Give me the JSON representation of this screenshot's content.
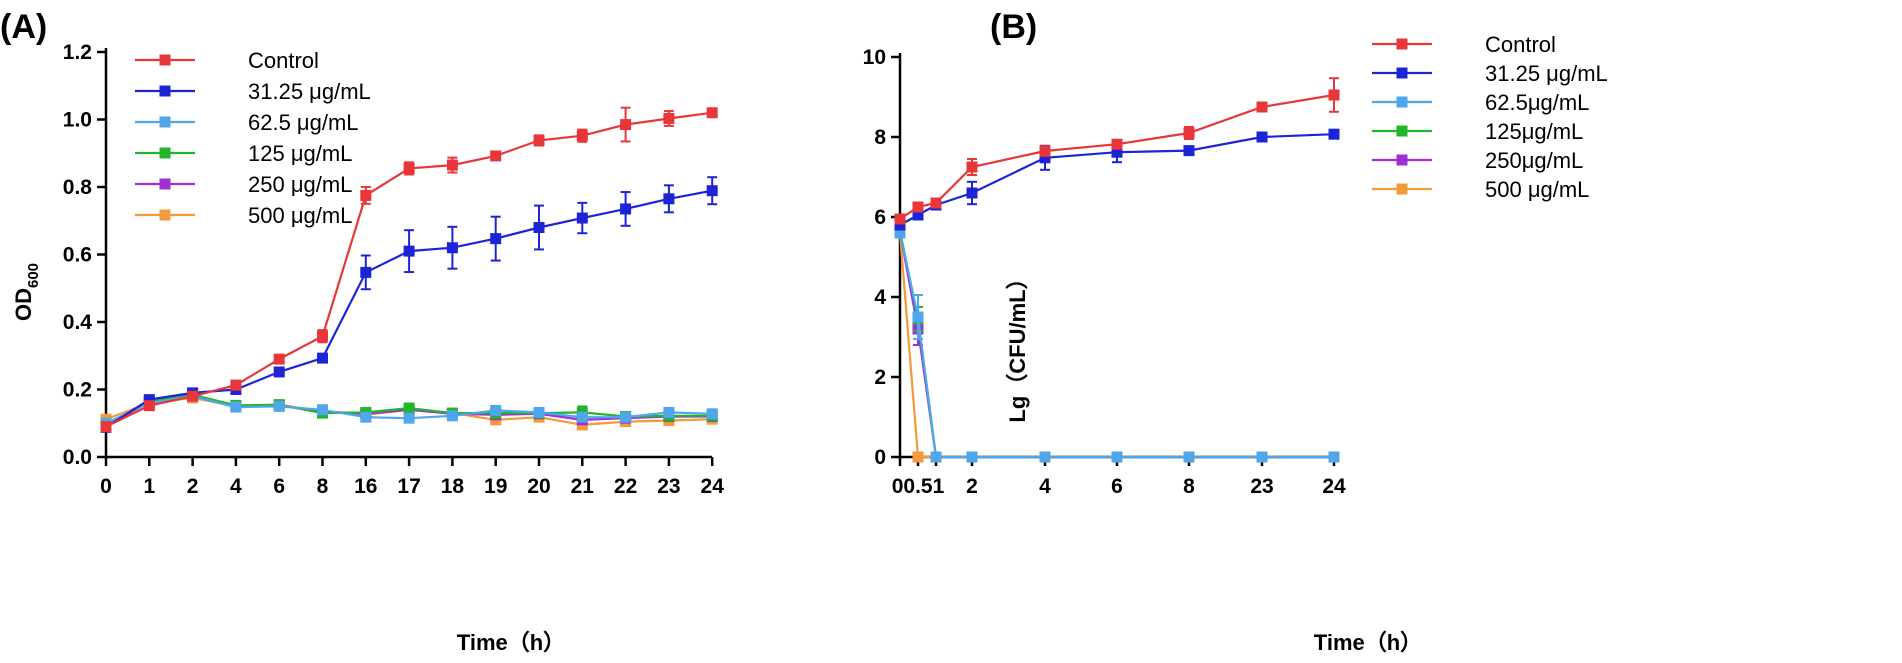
{
  "colors": {
    "Control": "#e8373a",
    "31.25": "#1d24d6",
    "62.5": "#4fa6ea",
    "125": "#22b52c",
    "250": "#a22fd4",
    "500": "#f29a3c"
  },
  "chart_data": [
    {
      "panel": "(A)",
      "type": "line",
      "xlabel": "Time（h）",
      "ylabel": "OD",
      "ylabel_sub": "600",
      "ylim": [
        0,
        1.2
      ],
      "yticks": [
        "0.0",
        "0.2",
        "0.4",
        "0.6",
        "0.8",
        "1.0",
        "1.2"
      ],
      "categories": [
        "0",
        "1",
        "2",
        "4",
        "6",
        "8",
        "16",
        "17",
        "18",
        "19",
        "20",
        "21",
        "22",
        "23",
        "24"
      ],
      "grid": false,
      "legend_position": "top-left",
      "series": [
        {
          "name": "Control",
          "color_key": "Control",
          "values": [
            0.09,
            0.152,
            0.18,
            0.213,
            0.29,
            0.358,
            0.775,
            0.855,
            0.865,
            0.892,
            0.938,
            0.952,
            0.985,
            1.003,
            1.02
          ],
          "errors": [
            0.008,
            0.008,
            0.008,
            0.01,
            0.01,
            0.018,
            0.025,
            0.018,
            0.022,
            0.012,
            0.015,
            0.018,
            0.05,
            0.022,
            0.01
          ]
        },
        {
          "name": "31.25 μg/mL",
          "color_key": "31.25",
          "values": [
            0.088,
            0.17,
            0.19,
            0.2,
            0.252,
            0.293,
            0.547,
            0.61,
            0.62,
            0.647,
            0.68,
            0.708,
            0.735,
            0.765,
            0.789
          ],
          "errors": [
            0.006,
            0.008,
            0.008,
            0.008,
            0.008,
            0.012,
            0.05,
            0.062,
            0.062,
            0.065,
            0.065,
            0.045,
            0.05,
            0.04,
            0.04
          ]
        },
        {
          "name": "62.5 μg/mL",
          "color_key": "62.5",
          "values": [
            0.1,
            0.16,
            0.18,
            0.148,
            0.15,
            0.14,
            0.118,
            0.115,
            0.122,
            0.138,
            0.132,
            0.118,
            0.118,
            0.132,
            0.128
          ],
          "errors": [
            0.006,
            0.006,
            0.008,
            0.008,
            0.008,
            0.008,
            0.01,
            0.01,
            0.01,
            0.01,
            0.01,
            0.01,
            0.01,
            0.01,
            0.008
          ]
        },
        {
          "name": "125 μg/mL",
          "color_key": "125",
          "values": [
            0.095,
            0.165,
            0.185,
            0.153,
            0.155,
            0.13,
            0.132,
            0.145,
            0.13,
            0.13,
            0.13,
            0.132,
            0.12,
            0.122,
            0.122
          ],
          "errors": [
            0.006,
            0.006,
            0.008,
            0.008,
            0.008,
            0.008,
            0.01,
            0.01,
            0.01,
            0.01,
            0.01,
            0.018,
            0.01,
            0.01,
            0.008
          ]
        },
        {
          "name": "250 μg/mL",
          "color_key": "250",
          "values": [
            0.092,
            0.162,
            0.182,
            0.152,
            0.152,
            0.135,
            0.128,
            0.14,
            0.128,
            0.125,
            0.128,
            0.11,
            0.115,
            0.12,
            0.12
          ],
          "errors": [
            0.006,
            0.006,
            0.008,
            0.008,
            0.008,
            0.008,
            0.01,
            0.01,
            0.01,
            0.01,
            0.01,
            0.012,
            0.01,
            0.01,
            0.008
          ]
        },
        {
          "name": "500 μg/mL",
          "color_key": "500",
          "values": [
            0.112,
            0.16,
            0.175,
            0.15,
            0.155,
            0.135,
            0.125,
            0.14,
            0.13,
            0.11,
            0.118,
            0.095,
            0.105,
            0.108,
            0.112
          ],
          "errors": [
            0.006,
            0.006,
            0.008,
            0.008,
            0.008,
            0.008,
            0.01,
            0.01,
            0.01,
            0.01,
            0.01,
            0.012,
            0.01,
            0.01,
            0.008
          ]
        }
      ]
    },
    {
      "panel": "(B)",
      "type": "line",
      "xlabel": "Time（h）",
      "ylabel": "Lg（CFU/mL）",
      "ylim": [
        0,
        10
      ],
      "yticks": [
        "0",
        "2",
        "4",
        "6",
        "8",
        "10"
      ],
      "categories": [
        "0",
        "0.5",
        "1",
        "2",
        "4",
        "6",
        "8",
        "23",
        "24"
      ],
      "tick_labels": [
        "00.51",
        "",
        "",
        "2",
        "4",
        "6",
        "8",
        "23",
        "24"
      ],
      "grid": false,
      "legend_position": "top-right",
      "series": [
        {
          "name": "Control",
          "color_key": "Control",
          "values": [
            5.95,
            6.25,
            6.35,
            7.25,
            7.65,
            7.82,
            8.1,
            8.75,
            9.05
          ],
          "errors": [
            0.1,
            0.05,
            0.06,
            0.2,
            0.12,
            0.1,
            0.15,
            0.1,
            0.42
          ]
        },
        {
          "name": "31.25 μg/mL",
          "color_key": "31.25",
          "values": [
            5.8,
            6.05,
            6.3,
            6.6,
            7.48,
            7.62,
            7.66,
            8.0,
            8.07
          ],
          "errors": [
            0.08,
            0.08,
            0.05,
            0.28,
            0.3,
            0.25,
            0.05,
            0.05,
            0.05
          ]
        },
        {
          "name": "62.5μg/mL",
          "color_key": "62.5",
          "values": [
            5.6,
            3.5,
            0,
            0,
            0,
            0,
            0,
            0,
            0
          ],
          "errors": [
            0.08,
            0.55,
            0,
            0,
            0,
            0,
            0,
            0,
            0
          ]
        },
        {
          "name": "125μg/mL",
          "color_key": "125",
          "values": [
            5.65,
            3.45,
            0,
            0,
            0,
            0,
            0,
            0,
            0
          ],
          "errors": [
            0.08,
            0.3,
            0,
            0,
            0,
            0,
            0,
            0,
            0
          ]
        },
        {
          "name": "250μg/mL",
          "color_key": "250",
          "values": [
            5.62,
            3.2,
            0,
            0,
            0,
            0,
            0,
            0,
            0
          ],
          "errors": [
            0.08,
            0.4,
            0,
            0,
            0,
            0,
            0,
            0,
            0
          ]
        },
        {
          "name": "500 μg/mL",
          "color_key": "500",
          "values": [
            5.6,
            0,
            0,
            0,
            0,
            0,
            0,
            0,
            0
          ],
          "errors": [
            0.08,
            0,
            0,
            0,
            0,
            0,
            0,
            0,
            0
          ]
        }
      ]
    }
  ]
}
